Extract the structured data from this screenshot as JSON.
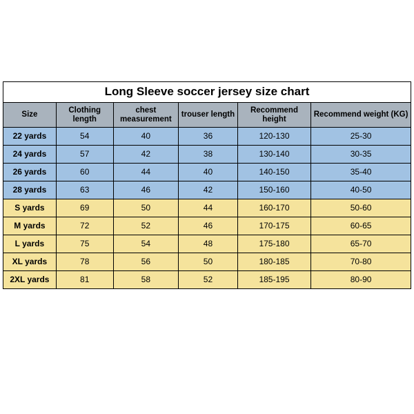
{
  "title": "Long Sleeve soccer jersey size chart",
  "columns": [
    "Size",
    "Clothing length",
    "chest measurement",
    "trouser length",
    "Recommend height",
    "Recommend weight (KG)"
  ],
  "header_bg": "#a9b3bd",
  "kid_bg": "#a1c2e3",
  "adult_bg": "#f5e39c",
  "border_color": "#000000",
  "rows": [
    {
      "group": "kid",
      "cells": [
        "22 yards",
        "54",
        "40",
        "36",
        "120-130",
        "25-30"
      ]
    },
    {
      "group": "kid",
      "cells": [
        "24 yards",
        "57",
        "42",
        "38",
        "130-140",
        "30-35"
      ]
    },
    {
      "group": "kid",
      "cells": [
        "26 yards",
        "60",
        "44",
        "40",
        "140-150",
        "35-40"
      ]
    },
    {
      "group": "kid",
      "cells": [
        "28 yards",
        "63",
        "46",
        "42",
        "150-160",
        "40-50"
      ]
    },
    {
      "group": "adult",
      "cells": [
        "S yards",
        "69",
        "50",
        "44",
        "160-170",
        "50-60"
      ]
    },
    {
      "group": "adult",
      "cells": [
        "M yards",
        "72",
        "52",
        "46",
        "170-175",
        "60-65"
      ]
    },
    {
      "group": "adult",
      "cells": [
        "L yards",
        "75",
        "54",
        "48",
        "175-180",
        "65-70"
      ]
    },
    {
      "group": "adult",
      "cells": [
        "XL yards",
        "78",
        "56",
        "50",
        "180-185",
        "70-80"
      ]
    },
    {
      "group": "adult",
      "cells": [
        "2XL yards",
        "81",
        "58",
        "52",
        "185-195",
        "80-90"
      ]
    }
  ]
}
